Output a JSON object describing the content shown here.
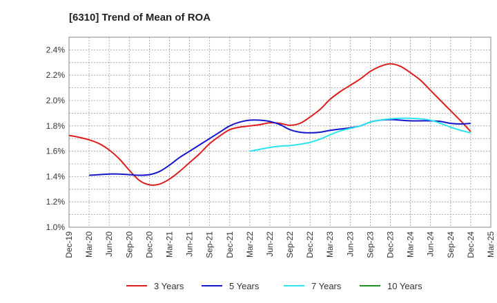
{
  "chart_data": {
    "type": "line",
    "title": "[6310]  Trend of Mean of ROA",
    "xlabel": "",
    "ylabel": "",
    "ylim": [
      1.0,
      2.5
    ],
    "yticks": [
      "1.0%",
      "1.2%",
      "1.4%",
      "1.6%",
      "1.8%",
      "2.0%",
      "2.2%",
      "2.4%"
    ],
    "ytick_values": [
      1.0,
      1.2,
      1.4,
      1.6,
      1.8,
      2.0,
      2.2,
      2.4
    ],
    "x_categories": [
      "Dec-19",
      "Mar-20",
      "Jun-20",
      "Sep-20",
      "Dec-20",
      "Mar-21",
      "Jun-21",
      "Sep-21",
      "Dec-21",
      "Mar-22",
      "Jun-22",
      "Sep-22",
      "Dec-22",
      "Mar-23",
      "Jun-23",
      "Sep-23",
      "Dec-23",
      "Mar-24",
      "Jun-24",
      "Sep-24",
      "Dec-24",
      "Mar-25"
    ],
    "grid": true,
    "legend_position": "bottom",
    "series": [
      {
        "name": "3 Years",
        "color": "#dd1c1c",
        "x": [
          0,
          0.5,
          1,
          1.5,
          2,
          2.5,
          3,
          3.5,
          4,
          4.5,
          5,
          5.5,
          6,
          6.5,
          7,
          7.5,
          8,
          8.5,
          9,
          9.5,
          10,
          10.5,
          11,
          11.5,
          12,
          12.5,
          13,
          13.5,
          14,
          14.5,
          15,
          15.5,
          16,
          16.5,
          17,
          17.5,
          18,
          18.5,
          19,
          19.5,
          20
        ],
        "values": [
          1.725,
          1.71,
          1.69,
          1.66,
          1.61,
          1.54,
          1.45,
          1.37,
          1.335,
          1.34,
          1.38,
          1.44,
          1.51,
          1.58,
          1.66,
          1.72,
          1.77,
          1.79,
          1.8,
          1.81,
          1.825,
          1.82,
          1.805,
          1.82,
          1.87,
          1.93,
          2.01,
          2.07,
          2.12,
          2.17,
          2.23,
          2.27,
          2.29,
          2.27,
          2.22,
          2.16,
          2.08,
          2.0,
          1.92,
          1.84,
          1.755
        ]
      },
      {
        "name": "5 Years",
        "color": "#1515cc",
        "x": [
          1,
          1.5,
          2,
          2.5,
          3,
          3.5,
          4,
          4.5,
          5,
          5.5,
          6,
          6.5,
          7,
          7.5,
          8,
          8.5,
          9,
          9.5,
          10,
          10.5,
          11,
          11.5,
          12,
          12.5,
          13,
          13.5,
          14,
          14.5,
          15,
          15.5,
          16,
          16.5,
          17,
          17.5,
          18,
          18.5,
          19,
          19.5,
          20
        ],
        "values": [
          1.41,
          1.415,
          1.42,
          1.42,
          1.415,
          1.41,
          1.415,
          1.44,
          1.49,
          1.55,
          1.6,
          1.65,
          1.7,
          1.75,
          1.8,
          1.83,
          1.845,
          1.845,
          1.835,
          1.81,
          1.77,
          1.75,
          1.745,
          1.75,
          1.765,
          1.775,
          1.785,
          1.8,
          1.83,
          1.845,
          1.85,
          1.845,
          1.84,
          1.84,
          1.84,
          1.835,
          1.82,
          1.815,
          1.82
        ]
      },
      {
        "name": "7 Years",
        "color": "#2be4ef",
        "x": [
          9,
          9.5,
          10,
          10.5,
          11,
          11.5,
          12,
          12.5,
          13,
          13.5,
          14,
          14.5,
          15,
          15.5,
          16,
          16.5,
          17,
          17.5,
          18,
          18.5,
          19,
          19.5,
          20
        ],
        "values": [
          1.6,
          1.615,
          1.63,
          1.64,
          1.645,
          1.655,
          1.67,
          1.695,
          1.73,
          1.76,
          1.78,
          1.8,
          1.83,
          1.845,
          1.855,
          1.86,
          1.86,
          1.855,
          1.845,
          1.82,
          1.79,
          1.765,
          1.745
        ]
      },
      {
        "name": "10 Years",
        "color": "#1c8f1c",
        "x": [],
        "values": []
      }
    ]
  }
}
